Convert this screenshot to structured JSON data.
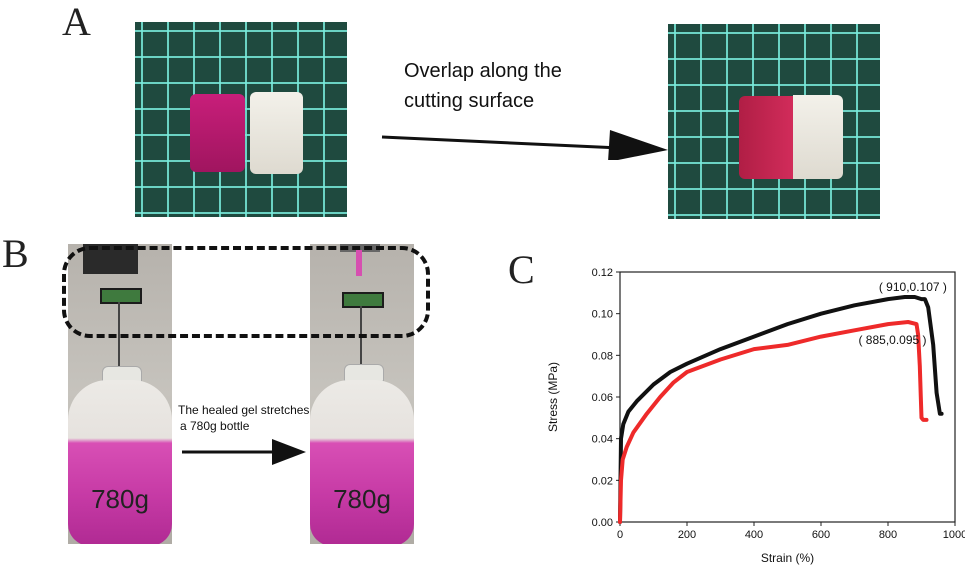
{
  "panels": {
    "a": {
      "letter": "A",
      "caption_line1": "Overlap along the",
      "caption_line2": "cutting surface"
    },
    "b": {
      "letter": "B",
      "caption_line1": "The healed gel stretches",
      "caption_line2": "a 780g bottle",
      "bottle_label": "780g"
    },
    "c": {
      "letter": "C"
    }
  },
  "chart_data": {
    "type": "line",
    "xlabel": "Strain (%)",
    "ylabel": "Stress (MPa)",
    "xlim": [
      0,
      1000
    ],
    "ylim": [
      0,
      0.12
    ],
    "xticks": [
      0,
      200,
      400,
      600,
      800,
      1000
    ],
    "yticks": [
      0.0,
      0.02,
      0.04,
      0.06,
      0.08,
      0.1,
      0.12
    ],
    "grid": false,
    "colors": {
      "black_series": "#111111",
      "red_series": "#ee2a2a"
    },
    "series": [
      {
        "color": "#111111",
        "x": [
          0,
          3,
          10,
          25,
          50,
          100,
          150,
          200,
          300,
          400,
          500,
          600,
          700,
          800,
          850,
          880,
          900,
          910,
          920,
          935,
          945,
          955,
          960
        ],
        "y": [
          0.0,
          0.04,
          0.047,
          0.053,
          0.058,
          0.066,
          0.072,
          0.076,
          0.083,
          0.089,
          0.095,
          0.1,
          0.104,
          0.107,
          0.108,
          0.108,
          0.107,
          0.107,
          0.103,
          0.085,
          0.062,
          0.052,
          0.052
        ]
      },
      {
        "color": "#ee2a2a",
        "x": [
          0,
          3,
          8,
          20,
          40,
          80,
          120,
          160,
          200,
          300,
          400,
          500,
          600,
          700,
          800,
          860,
          885,
          890,
          895,
          898,
          900,
          905,
          915
        ],
        "y": [
          0.0,
          0.02,
          0.03,
          0.036,
          0.043,
          0.052,
          0.06,
          0.067,
          0.072,
          0.078,
          0.083,
          0.085,
          0.089,
          0.092,
          0.095,
          0.096,
          0.095,
          0.09,
          0.075,
          0.06,
          0.05,
          0.049,
          0.049
        ]
      }
    ],
    "annotations": [
      {
        "text": "( 910,0.107 )",
        "x": 910,
        "y": 0.107
      },
      {
        "text": "( 885,0.095 )",
        "x": 885,
        "y": 0.095
      }
    ]
  }
}
